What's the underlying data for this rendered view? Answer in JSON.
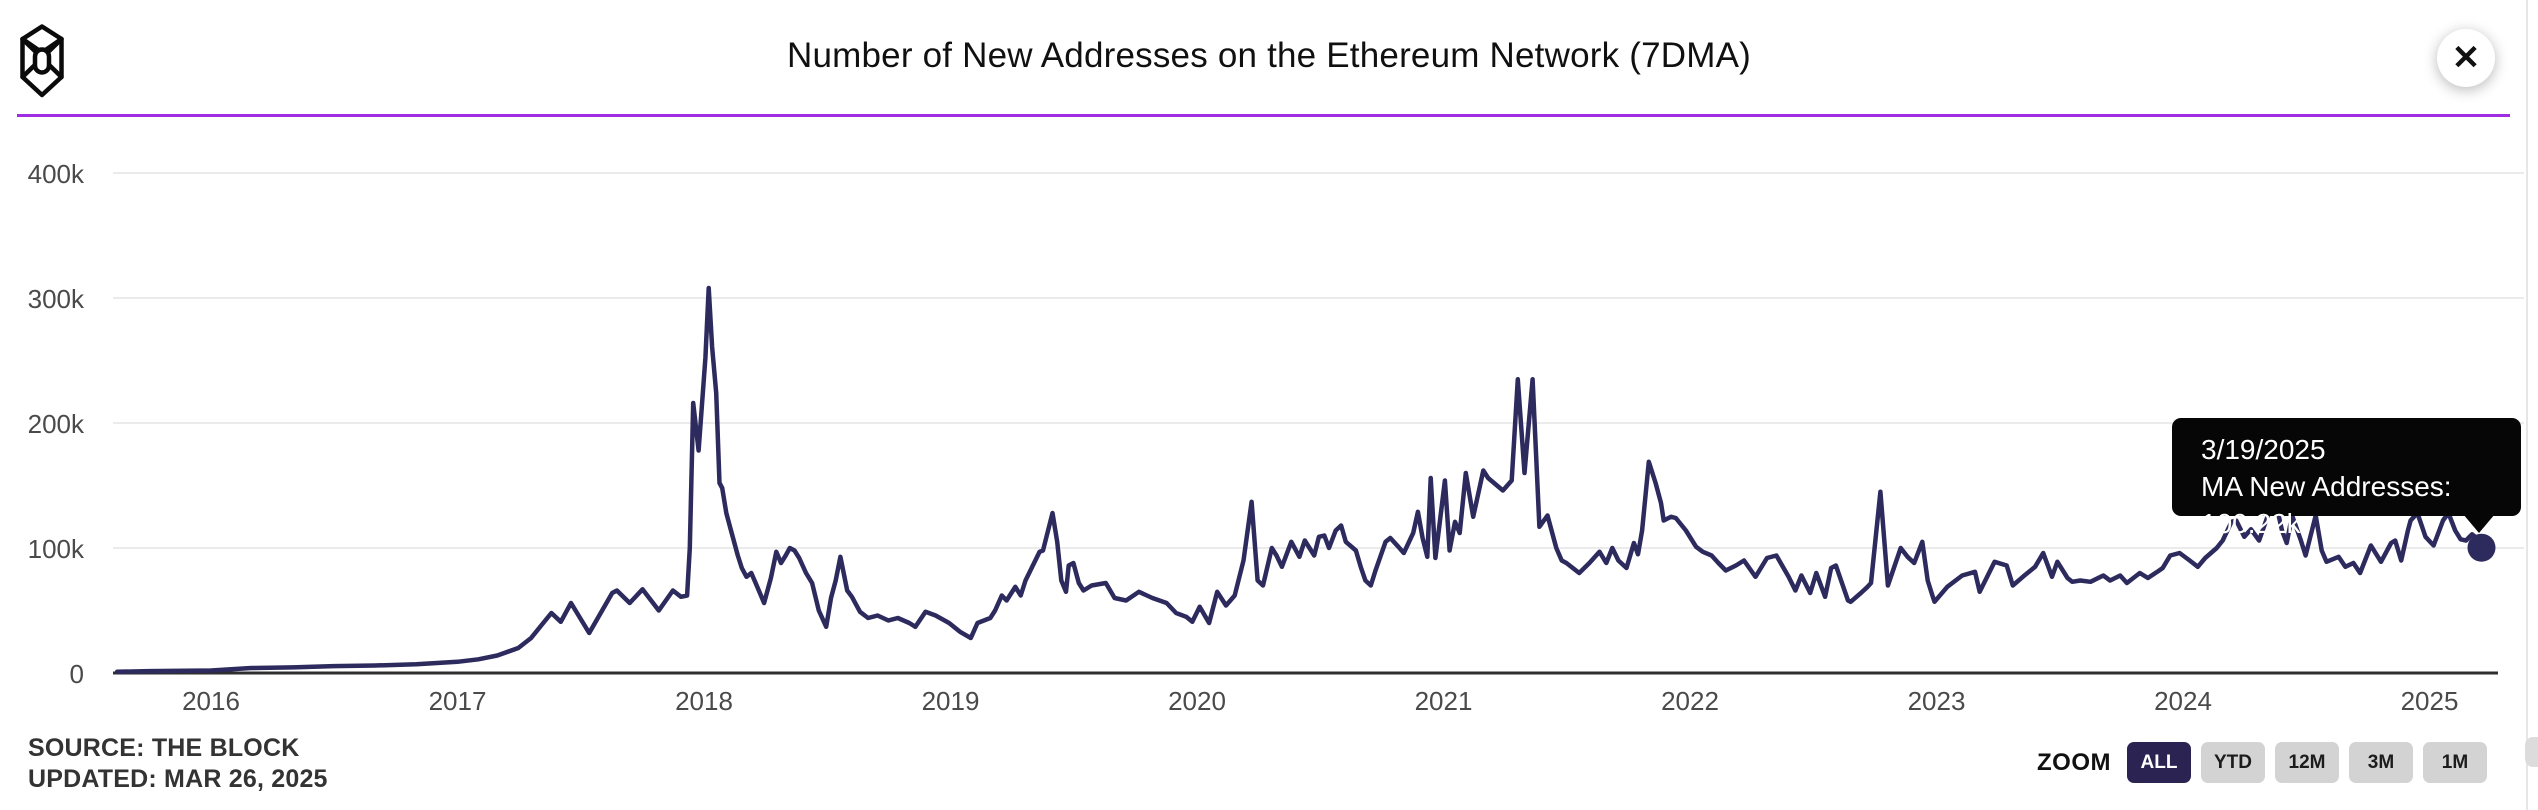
{
  "header": {
    "title": "Number of New Addresses on the Ethereum Network (7DMA)",
    "logo_name": "the-block-logo",
    "close_glyph": "✕"
  },
  "accent_color": "#A02DE1",
  "tooltip": {
    "date": "3/19/2025",
    "value_line": "MA New Addresses: 100.22k"
  },
  "footer": {
    "source": "SOURCE: THE BLOCK",
    "updated": "UPDATED: MAR 26, 2025"
  },
  "zoom_controls": {
    "label": "ZOOM",
    "buttons": [
      {
        "label": "ALL",
        "active": true
      },
      {
        "label": "YTD",
        "active": false
      },
      {
        "label": "12M",
        "active": false
      },
      {
        "label": "3M",
        "active": false
      },
      {
        "label": "1M",
        "active": false
      }
    ]
  },
  "chart_data": {
    "type": "line",
    "title": "Number of New Addresses on the Ethereum Network (7DMA)",
    "series_name": "MA New Addresses",
    "line_color": "#2D2A5E",
    "grid": true,
    "ylim": [
      0,
      400000
    ],
    "y_ticks": [
      {
        "label": "400k",
        "value": 400
      },
      {
        "label": "300k",
        "value": 300
      },
      {
        "label": "200k",
        "value": 200
      },
      {
        "label": "100k",
        "value": 100
      },
      {
        "label": "0",
        "value": 0
      }
    ],
    "x_ticks": [
      2016,
      2017,
      2018,
      2019,
      2020,
      2021,
      2022,
      2023,
      2024,
      2025
    ],
    "last_point": {
      "date": "3/19/2025",
      "value_k": 100.22
    },
    "points": [
      [
        "2015-08-15",
        1
      ],
      [
        "2015-10-01",
        1.5
      ],
      [
        "2016-01-01",
        2
      ],
      [
        "2016-03-01",
        4
      ],
      [
        "2016-05-01",
        4.5
      ],
      [
        "2016-07-01",
        5.5
      ],
      [
        "2016-09-01",
        6
      ],
      [
        "2016-11-01",
        7
      ],
      [
        "2017-01-01",
        9
      ],
      [
        "2017-02-01",
        11
      ],
      [
        "2017-03-01",
        14
      ],
      [
        "2017-04-01",
        20
      ],
      [
        "2017-04-20",
        28
      ],
      [
        "2017-05-05",
        38
      ],
      [
        "2017-05-20",
        48
      ],
      [
        "2017-06-03",
        41
      ],
      [
        "2017-06-18",
        56
      ],
      [
        "2017-07-15",
        32
      ],
      [
        "2017-08-01",
        48
      ],
      [
        "2017-08-18",
        64
      ],
      [
        "2017-08-25",
        66
      ],
      [
        "2017-09-13",
        56
      ],
      [
        "2017-10-02",
        67
      ],
      [
        "2017-10-26",
        50
      ],
      [
        "2017-11-16",
        66
      ],
      [
        "2017-11-28",
        61
      ],
      [
        "2017-12-07",
        62
      ],
      [
        "2017-12-11",
        100
      ],
      [
        "2017-12-16",
        216
      ],
      [
        "2017-12-24",
        178
      ],
      [
        "2018-01-03",
        252
      ],
      [
        "2018-01-08",
        308
      ],
      [
        "2018-01-13",
        261
      ],
      [
        "2018-01-19",
        224
      ],
      [
        "2018-01-24",
        152
      ],
      [
        "2018-01-28",
        148
      ],
      [
        "2018-02-03",
        128
      ],
      [
        "2018-02-10",
        114
      ],
      [
        "2018-02-20",
        94
      ],
      [
        "2018-02-26",
        84
      ],
      [
        "2018-03-05",
        77
      ],
      [
        "2018-03-12",
        80
      ],
      [
        "2018-03-20",
        70
      ],
      [
        "2018-03-31",
        56
      ],
      [
        "2018-04-10",
        76
      ],
      [
        "2018-04-18",
        97
      ],
      [
        "2018-04-25",
        88
      ],
      [
        "2018-05-02",
        94
      ],
      [
        "2018-05-08",
        100
      ],
      [
        "2018-05-15",
        98
      ],
      [
        "2018-05-22",
        92
      ],
      [
        "2018-06-01",
        80
      ],
      [
        "2018-06-10",
        72
      ],
      [
        "2018-06-20",
        50
      ],
      [
        "2018-07-01",
        37
      ],
      [
        "2018-07-08",
        60
      ],
      [
        "2018-07-15",
        74
      ],
      [
        "2018-07-22",
        93
      ],
      [
        "2018-08-01",
        66
      ],
      [
        "2018-08-08",
        61
      ],
      [
        "2018-08-20",
        49
      ],
      [
        "2018-09-01",
        44
      ],
      [
        "2018-09-15",
        46
      ],
      [
        "2018-10-01",
        42
      ],
      [
        "2018-10-15",
        44
      ],
      [
        "2018-11-01",
        40
      ],
      [
        "2018-11-10",
        37
      ],
      [
        "2018-11-25",
        49
      ],
      [
        "2018-12-10",
        46
      ],
      [
        "2018-12-30",
        40
      ],
      [
        "2019-01-15",
        33
      ],
      [
        "2019-01-31",
        28
      ],
      [
        "2019-02-10",
        40
      ],
      [
        "2019-03-01",
        44
      ],
      [
        "2019-03-08",
        50
      ],
      [
        "2019-03-18",
        62
      ],
      [
        "2019-03-25",
        58
      ],
      [
        "2019-04-07",
        69
      ],
      [
        "2019-04-15",
        62
      ],
      [
        "2019-04-22",
        74
      ],
      [
        "2019-05-13",
        97
      ],
      [
        "2019-05-18",
        98
      ],
      [
        "2019-06-01",
        128
      ],
      [
        "2019-06-08",
        105
      ],
      [
        "2019-06-14",
        74
      ],
      [
        "2019-06-21",
        65
      ],
      [
        "2019-06-25",
        86
      ],
      [
        "2019-07-02",
        88
      ],
      [
        "2019-07-10",
        72
      ],
      [
        "2019-07-17",
        66
      ],
      [
        "2019-07-29",
        70
      ],
      [
        "2019-08-19",
        72
      ],
      [
        "2019-09-01",
        60
      ],
      [
        "2019-09-18",
        58
      ],
      [
        "2019-10-07",
        65
      ],
      [
        "2019-10-27",
        60
      ],
      [
        "2019-11-17",
        56
      ],
      [
        "2019-12-01",
        48
      ],
      [
        "2019-12-16",
        45
      ],
      [
        "2019-12-25",
        41
      ],
      [
        "2020-01-05",
        53
      ],
      [
        "2020-01-19",
        40
      ],
      [
        "2020-01-31",
        65
      ],
      [
        "2020-02-13",
        54
      ],
      [
        "2020-02-26",
        62
      ],
      [
        "2020-03-10",
        90
      ],
      [
        "2020-03-22",
        137
      ],
      [
        "2020-03-31",
        74
      ],
      [
        "2020-04-08",
        70
      ],
      [
        "2020-04-21",
        100
      ],
      [
        "2020-04-28",
        94
      ],
      [
        "2020-05-06",
        85
      ],
      [
        "2020-05-20",
        105
      ],
      [
        "2020-06-01",
        93
      ],
      [
        "2020-06-09",
        106
      ],
      [
        "2020-06-23",
        94
      ],
      [
        "2020-06-30",
        109
      ],
      [
        "2020-07-08",
        110
      ],
      [
        "2020-07-15",
        100
      ],
      [
        "2020-07-25",
        114
      ],
      [
        "2020-08-02",
        118
      ],
      [
        "2020-08-09",
        105
      ],
      [
        "2020-08-24",
        98
      ],
      [
        "2020-08-31",
        85
      ],
      [
        "2020-09-07",
        74
      ],
      [
        "2020-09-15",
        70
      ],
      [
        "2020-09-22",
        82
      ],
      [
        "2020-10-07",
        105
      ],
      [
        "2020-10-14",
        108
      ],
      [
        "2020-10-26",
        101
      ],
      [
        "2020-11-03",
        96
      ],
      [
        "2020-11-10",
        104
      ],
      [
        "2020-11-17",
        112
      ],
      [
        "2020-11-24",
        129
      ],
      [
        "2020-12-01",
        108
      ],
      [
        "2020-12-08",
        93
      ],
      [
        "2020-12-13",
        156
      ],
      [
        "2020-12-20",
        92
      ],
      [
        "2021-01-03",
        154
      ],
      [
        "2021-01-10",
        98
      ],
      [
        "2021-01-18",
        121
      ],
      [
        "2021-01-25",
        112
      ],
      [
        "2021-02-03",
        160
      ],
      [
        "2021-02-14",
        125
      ],
      [
        "2021-03-01",
        162
      ],
      [
        "2021-03-08",
        156
      ],
      [
        "2021-03-30",
        146
      ],
      [
        "2021-04-12",
        154
      ],
      [
        "2021-04-21",
        235
      ],
      [
        "2021-05-01",
        160
      ],
      [
        "2021-05-13",
        235
      ],
      [
        "2021-05-23",
        117
      ],
      [
        "2021-06-04",
        126
      ],
      [
        "2021-06-17",
        100
      ],
      [
        "2021-06-25",
        90
      ],
      [
        "2021-07-02",
        88
      ],
      [
        "2021-07-21",
        80
      ],
      [
        "2021-08-05",
        88
      ],
      [
        "2021-08-20",
        97
      ],
      [
        "2021-08-30",
        88
      ],
      [
        "2021-09-08",
        100
      ],
      [
        "2021-09-17",
        90
      ],
      [
        "2021-09-29",
        84
      ],
      [
        "2021-10-10",
        104
      ],
      [
        "2021-10-16",
        95
      ],
      [
        "2021-10-22",
        114
      ],
      [
        "2021-11-01",
        169
      ],
      [
        "2021-11-11",
        152
      ],
      [
        "2021-11-19",
        136
      ],
      [
        "2021-11-23",
        122
      ],
      [
        "2021-12-04",
        125
      ],
      [
        "2021-12-11",
        124
      ],
      [
        "2021-12-26",
        114
      ],
      [
        "2022-01-10",
        101
      ],
      [
        "2022-01-20",
        97
      ],
      [
        "2022-02-02",
        94
      ],
      [
        "2022-02-12",
        88
      ],
      [
        "2022-02-23",
        82
      ],
      [
        "2022-03-10",
        86
      ],
      [
        "2022-03-22",
        90
      ],
      [
        "2022-04-08",
        77
      ],
      [
        "2022-04-25",
        92
      ],
      [
        "2022-05-09",
        94
      ],
      [
        "2022-05-27",
        77
      ],
      [
        "2022-06-06",
        66
      ],
      [
        "2022-06-15",
        78
      ],
      [
        "2022-06-28",
        64
      ],
      [
        "2022-07-07",
        80
      ],
      [
        "2022-07-20",
        61
      ],
      [
        "2022-07-29",
        84
      ],
      [
        "2022-08-05",
        86
      ],
      [
        "2022-08-23",
        58
      ],
      [
        "2022-08-27",
        57
      ],
      [
        "2022-09-11",
        64
      ],
      [
        "2022-09-21",
        69
      ],
      [
        "2022-09-26",
        72
      ],
      [
        "2022-10-10",
        145
      ],
      [
        "2022-10-21",
        70
      ],
      [
        "2022-11-09",
        100
      ],
      [
        "2022-11-19",
        93
      ],
      [
        "2022-11-29",
        88
      ],
      [
        "2022-12-11",
        105
      ],
      [
        "2022-12-19",
        74
      ],
      [
        "2022-12-26",
        62
      ],
      [
        "2022-12-29",
        57
      ],
      [
        "2023-01-17",
        69
      ],
      [
        "2023-02-08",
        78
      ],
      [
        "2023-02-27",
        81
      ],
      [
        "2023-03-06",
        65
      ],
      [
        "2023-03-28",
        89
      ],
      [
        "2023-04-15",
        86
      ],
      [
        "2023-04-24",
        70
      ],
      [
        "2023-05-09",
        77
      ],
      [
        "2023-05-27",
        85
      ],
      [
        "2023-06-08",
        96
      ],
      [
        "2023-06-21",
        77
      ],
      [
        "2023-06-29",
        89
      ],
      [
        "2023-07-14",
        76
      ],
      [
        "2023-07-21",
        73
      ],
      [
        "2023-08-02",
        74
      ],
      [
        "2023-08-17",
        73
      ],
      [
        "2023-09-05",
        78
      ],
      [
        "2023-09-15",
        74
      ],
      [
        "2023-09-30",
        78
      ],
      [
        "2023-10-10",
        72
      ],
      [
        "2023-10-29",
        80
      ],
      [
        "2023-11-10",
        76
      ],
      [
        "2023-11-24",
        81
      ],
      [
        "2023-12-02",
        84
      ],
      [
        "2023-12-13",
        94
      ],
      [
        "2023-12-27",
        96
      ],
      [
        "2024-01-11",
        90
      ],
      [
        "2024-01-23",
        85
      ],
      [
        "2024-02-03",
        92
      ],
      [
        "2024-02-20",
        100
      ],
      [
        "2024-02-29",
        106
      ],
      [
        "2024-03-13",
        121
      ],
      [
        "2024-03-20",
        122
      ],
      [
        "2024-04-01",
        109
      ],
      [
        "2024-04-11",
        115
      ],
      [
        "2024-04-23",
        106
      ],
      [
        "2024-05-08",
        129
      ],
      [
        "2024-05-20",
        131
      ],
      [
        "2024-05-27",
        114
      ],
      [
        "2024-06-03",
        104
      ],
      [
        "2024-06-11",
        126
      ],
      [
        "2024-06-24",
        106
      ],
      [
        "2024-07-01",
        94
      ],
      [
        "2024-07-16",
        126
      ],
      [
        "2024-07-25",
        98
      ],
      [
        "2024-08-01",
        89
      ],
      [
        "2024-08-19",
        93
      ],
      [
        "2024-08-29",
        85
      ],
      [
        "2024-09-10",
        88
      ],
      [
        "2024-09-20",
        80
      ],
      [
        "2024-10-06",
        102
      ],
      [
        "2024-10-21",
        89
      ],
      [
        "2024-11-05",
        104
      ],
      [
        "2024-11-11",
        106
      ],
      [
        "2024-11-20",
        90
      ],
      [
        "2024-11-30",
        114
      ],
      [
        "2024-12-04",
        122
      ],
      [
        "2024-12-14",
        128
      ],
      [
        "2024-12-26",
        109
      ],
      [
        "2025-01-07",
        102
      ],
      [
        "2025-01-21",
        122
      ],
      [
        "2025-01-29",
        128
      ],
      [
        "2025-02-08",
        114
      ],
      [
        "2025-02-16",
        107
      ],
      [
        "2025-02-24",
        106
      ],
      [
        "2025-03-05",
        111
      ],
      [
        "2025-03-12",
        108
      ],
      [
        "2025-03-19",
        100.22
      ]
    ]
  }
}
